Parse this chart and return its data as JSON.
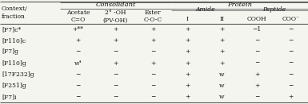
{
  "title_consolidant": "Consolidant",
  "title_protein": "Protein",
  "rows": [
    [
      "[F7]c*",
      "+**",
      "+",
      "+",
      "+",
      "+",
      "−1",
      "−"
    ],
    [
      "[F110]c",
      "+",
      "+",
      "+",
      "+",
      "+",
      "−",
      "−"
    ],
    [
      "[F7]g",
      "−",
      "−",
      "−",
      "+",
      "+",
      "−",
      "−"
    ],
    [
      "[F110]g",
      "w⁴",
      "+",
      "+",
      "+",
      "+",
      "−",
      "−"
    ],
    [
      "[17F232]g",
      "−",
      "−",
      "−",
      "+",
      "w",
      "+",
      "−"
    ],
    [
      "[F251]g",
      "−",
      "−",
      "−",
      "+",
      "w",
      "+",
      "−"
    ],
    [
      "[F7]i",
      "−",
      "−",
      "−",
      "+",
      "w",
      "−",
      "+"
    ]
  ],
  "background_color": "#f5f5f0",
  "line_color": "#555555",
  "text_color": "#111111",
  "font_size": 5.5,
  "header_font_size": 6.0
}
